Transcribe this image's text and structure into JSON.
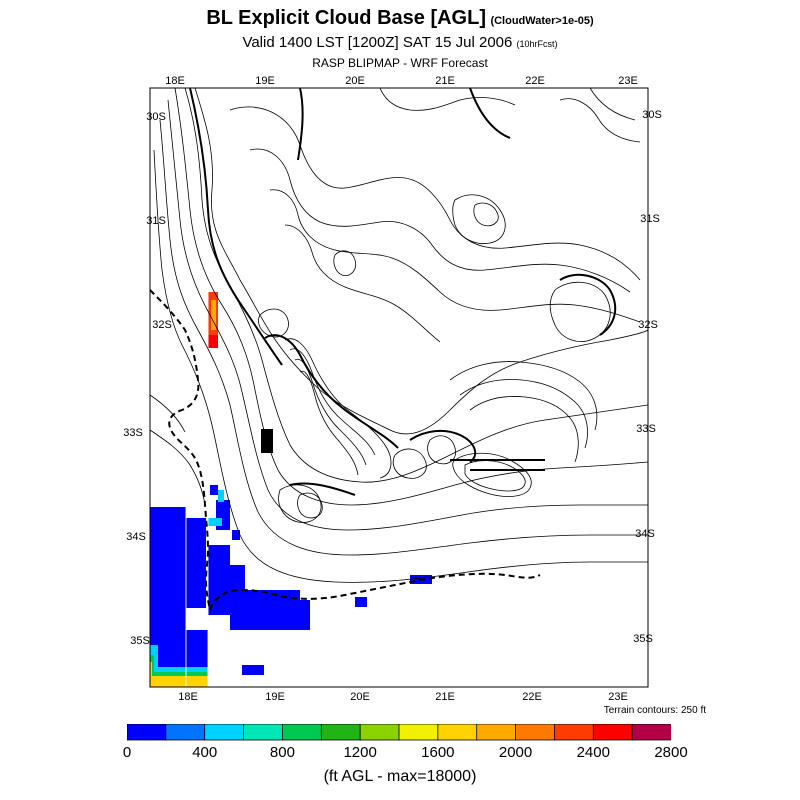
{
  "title": {
    "main": "BL Explicit Cloud Base [AGL]",
    "sub": "(CloudWater>1e-05)"
  },
  "subtitle": {
    "main": "Valid 1400 LST [1200Z] SAT 15 Jul 2006",
    "small": "(10hrFcst)"
  },
  "model": "RASP BLIPMAP - WRF Forecast",
  "map": {
    "top_lon_labels": [
      "18E",
      "19E",
      "20E",
      "21E",
      "22E",
      "23E"
    ],
    "bottom_lon_labels": [
      "18E",
      "19E",
      "20E",
      "21E",
      "22E",
      "23E"
    ],
    "left_lat_labels": [
      "30S",
      "31S",
      "32S",
      "33S",
      "34S",
      "35S"
    ],
    "right_lat_labels": [
      "30S",
      "31S",
      "32S",
      "33S",
      "34S",
      "35S"
    ],
    "terrain_note": "Terrain contours: 250 ft"
  },
  "legend": {
    "tick_labels": [
      "0",
      "400",
      "800",
      "1200",
      "1600",
      "2000",
      "2400",
      "2800"
    ],
    "colors": [
      "#0000ff",
      "#0073ff",
      "#00d2ff",
      "#00e6b4",
      "#00c850",
      "#20b414",
      "#8cd200",
      "#f0f000",
      "#ffd200",
      "#ffaa00",
      "#ff7800",
      "#ff3c00",
      "#ff0000",
      "#b40046"
    ],
    "units": "(ft AGL - max=18000)"
  }
}
